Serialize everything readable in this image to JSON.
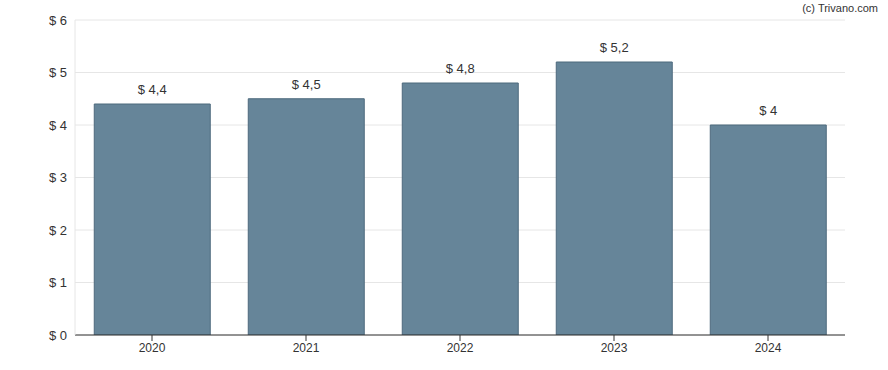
{
  "chart_data": {
    "type": "bar",
    "categories": [
      "2020",
      "2021",
      "2022",
      "2023",
      "2024"
    ],
    "values": [
      4.4,
      4.5,
      4.8,
      5.2,
      4
    ],
    "value_labels": [
      "$ 4,4",
      "$ 4,5",
      "$ 4,8",
      "$ 5,2",
      "$ 4"
    ],
    "data_labels": true,
    "color": "#668599",
    "ylim": [
      0,
      6
    ],
    "yticks": [
      {
        "value": 0,
        "label": "$ 0"
      },
      {
        "value": 1,
        "label": "$ 1"
      },
      {
        "value": 2,
        "label": "$ 2"
      },
      {
        "value": 3,
        "label": "$ 3"
      },
      {
        "value": 4,
        "label": "$ 4"
      },
      {
        "value": 5,
        "label": "$ 5"
      },
      {
        "value": 6,
        "label": "$ 6"
      }
    ],
    "grid": true,
    "annotations": [
      "(c) Trivano.com"
    ]
  }
}
